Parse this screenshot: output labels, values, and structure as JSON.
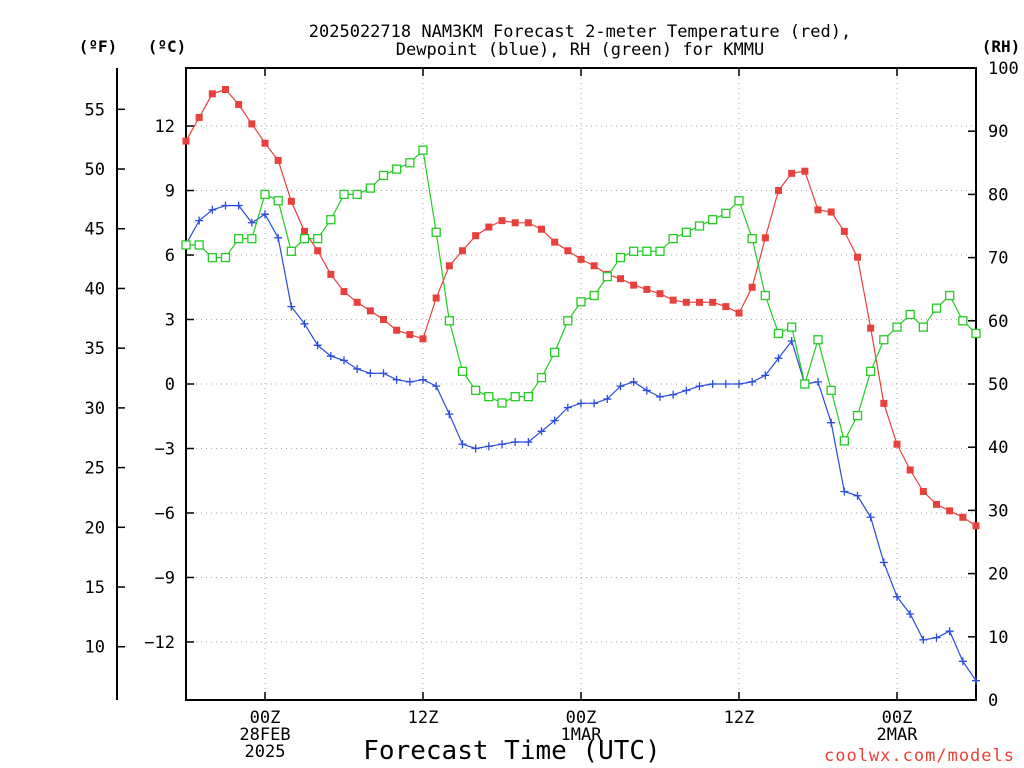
{
  "title_line1": "2025022718 NAM3KM Forecast 2-meter Temperature (red),",
  "title_line2": "Dewpoint (blue), RH (green) for KMMU",
  "units": {
    "fahrenheit": "(ºF)",
    "celsius": "(ºC)",
    "rh": "(RH)"
  },
  "xlabel": "Forecast Time (UTC)",
  "credit": "coolwx.com/models",
  "colors": {
    "temperature": "#e8403a",
    "dewpoint": "#2a4be0",
    "rh": "#22cc22",
    "grid": "#aaaaaa"
  },
  "chart_data": {
    "type": "line",
    "x_units": "hours after 2025-02-27 18Z",
    "xlim": [
      0,
      60
    ],
    "x_ticks": [
      {
        "x": 6,
        "lines": [
          "00Z",
          "28FEB",
          "2025"
        ]
      },
      {
        "x": 18,
        "lines": [
          "12Z"
        ]
      },
      {
        "x": 30,
        "lines": [
          "00Z",
          "1MAR"
        ]
      },
      {
        "x": 42,
        "lines": [
          "12Z"
        ]
      },
      {
        "x": 54,
        "lines": [
          "00Z",
          "2MAR"
        ]
      }
    ],
    "y_celsius": {
      "ylim": [
        -14.7,
        14.7
      ],
      "ticks": [
        -12,
        -9,
        -6,
        -3,
        0,
        3,
        6,
        9,
        12
      ]
    },
    "y_fahrenheit": {
      "ticks": [
        10,
        15,
        20,
        25,
        30,
        35,
        40,
        45,
        50,
        55
      ]
    },
    "y_rh": {
      "ylim": [
        0,
        100
      ],
      "ticks": [
        0,
        10,
        20,
        30,
        40,
        50,
        60,
        70,
        80,
        90,
        100
      ]
    },
    "grid": true,
    "series": [
      {
        "name": "Temperature",
        "axis": "celsius",
        "marker": "filled-square",
        "x": [
          0,
          1,
          2,
          3,
          4,
          5,
          6,
          7,
          8,
          9,
          10,
          11,
          12,
          13,
          14,
          15,
          16,
          17,
          18,
          19,
          20,
          21,
          22,
          23,
          24,
          25,
          26,
          27,
          28,
          29,
          30,
          31,
          32,
          33,
          34,
          35,
          36,
          37,
          38,
          39,
          40,
          41,
          42,
          43,
          44,
          45,
          46,
          47,
          48,
          49,
          50,
          51,
          52,
          53,
          54,
          55,
          56,
          57,
          58,
          59,
          60
        ],
        "values": [
          11.3,
          12.4,
          13.5,
          13.7,
          13.0,
          12.1,
          11.2,
          10.4,
          8.5,
          7.1,
          6.2,
          5.1,
          4.3,
          3.8,
          3.4,
          3.0,
          2.5,
          2.3,
          2.1,
          4.0,
          5.5,
          6.2,
          6.9,
          7.3,
          7.6,
          7.5,
          7.5,
          7.2,
          6.6,
          6.2,
          5.8,
          5.5,
          5.1,
          4.9,
          4.6,
          4.4,
          4.2,
          3.9,
          3.8,
          3.8,
          3.8,
          3.6,
          3.3,
          4.5,
          6.8,
          9.0,
          9.8,
          9.9,
          8.1,
          8.0,
          7.1,
          5.9,
          2.6,
          -0.9,
          -2.8,
          -4.0,
          -5.0,
          -5.6,
          -5.9,
          -6.2,
          -6.6
        ]
      },
      {
        "name": "Dewpoint",
        "axis": "celsius",
        "marker": "plus",
        "x": [
          0,
          1,
          2,
          3,
          4,
          5,
          6,
          7,
          8,
          9,
          10,
          11,
          12,
          13,
          14,
          15,
          16,
          17,
          18,
          19,
          20,
          21,
          22,
          23,
          24,
          25,
          26,
          27,
          28,
          29,
          30,
          31,
          32,
          33,
          34,
          35,
          36,
          37,
          38,
          39,
          40,
          41,
          42,
          43,
          44,
          45,
          46,
          47,
          48,
          49,
          50,
          51,
          52,
          53,
          54,
          55,
          56,
          57,
          58,
          59,
          60
        ],
        "values": [
          6.5,
          7.6,
          8.1,
          8.3,
          8.3,
          7.5,
          7.9,
          6.8,
          3.6,
          2.8,
          1.8,
          1.3,
          1.1,
          0.7,
          0.5,
          0.5,
          0.2,
          0.1,
          0.2,
          -0.1,
          -1.4,
          -2.8,
          -3.0,
          -2.9,
          -2.8,
          -2.7,
          -2.7,
          -2.2,
          -1.7,
          -1.1,
          -0.9,
          -0.9,
          -0.7,
          -0.1,
          0.1,
          -0.3,
          -0.6,
          -0.5,
          -0.3,
          -0.1,
          0.0,
          0.0,
          0.0,
          0.1,
          0.4,
          1.2,
          2.0,
          0.0,
          0.1,
          -1.8,
          -5.0,
          -5.2,
          -6.2,
          -8.3,
          -9.9,
          -10.7,
          -11.9,
          -11.8,
          -11.5,
          -12.9,
          -13.8
        ]
      },
      {
        "name": "RH",
        "axis": "rh",
        "marker": "open-square",
        "x": [
          0,
          1,
          2,
          3,
          4,
          5,
          6,
          7,
          8,
          9,
          10,
          11,
          12,
          13,
          14,
          15,
          16,
          17,
          18,
          19,
          20,
          21,
          22,
          23,
          24,
          25,
          26,
          27,
          28,
          29,
          30,
          31,
          32,
          33,
          34,
          35,
          36,
          37,
          38,
          39,
          40,
          41,
          42,
          43,
          44,
          45,
          46,
          47,
          48,
          49,
          50,
          51,
          52,
          53,
          54,
          55,
          56,
          57,
          58,
          59,
          60
        ],
        "values": [
          72,
          72,
          70,
          70,
          73,
          73,
          80,
          79,
          71,
          73,
          73,
          76,
          80,
          80,
          81,
          83,
          84,
          85,
          87,
          74,
          60,
          52,
          49,
          48,
          47,
          48,
          48,
          51,
          55,
          60,
          63,
          64,
          67,
          70,
          71,
          71,
          71,
          73,
          74,
          75,
          76,
          77,
          79,
          73,
          64,
          58,
          59,
          50,
          57,
          49,
          41,
          45,
          52,
          57,
          59,
          61,
          59,
          62,
          64,
          60,
          58
        ]
      }
    ]
  }
}
